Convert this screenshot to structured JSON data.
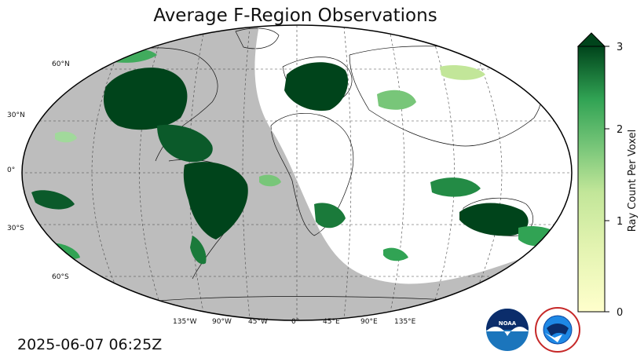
{
  "map": {
    "title": "Average F-Region Observations",
    "timestamp": "2025-06-07 06:25Z",
    "projection": "Robinson",
    "night_shading": "#bdbdbd",
    "graticule": {
      "lat_labels": [
        "60°N",
        "30°N",
        "0°",
        "30°S",
        "60°S"
      ],
      "lon_labels": [
        "135°W",
        "90°W",
        "45°W",
        "0°",
        "45°E",
        "90°E",
        "135°E"
      ]
    }
  },
  "colorbar": {
    "label": "Ray Count Per Voxel",
    "ticks": [
      "0",
      "1",
      "2",
      "3"
    ],
    "min": 0,
    "max": 3,
    "extend": "max",
    "colors": {
      "low": "#ffffcc",
      "mid1": "#c2e699",
      "mid2": "#78c679",
      "mid3": "#31a354",
      "high": "#00441b"
    }
  },
  "logos": {
    "noaa": "NOAA",
    "nws": "NATIONAL WEATHER SERVICE"
  }
}
